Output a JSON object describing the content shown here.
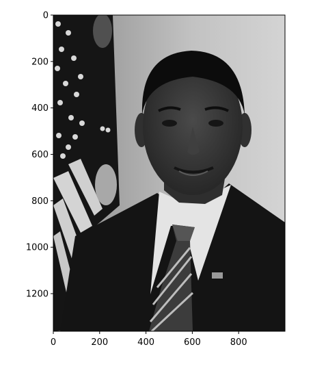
{
  "figure": {
    "xaxis": {
      "ticks": [
        0,
        200,
        400,
        600,
        800
      ],
      "range": [
        0,
        1000
      ]
    },
    "yaxis": {
      "ticks": [
        0,
        200,
        400,
        600,
        800,
        1000,
        1200
      ],
      "range": [
        1362,
        0
      ]
    }
  },
  "image": {
    "subject": "grayscale official portrait of a man in a dark suit and striped tie in front of a US flag",
    "colors": {
      "background": "#c8c8c8",
      "suit": "#121212",
      "shirt": "#e6e6e6",
      "skin": "#3a3a3a",
      "hair": "#0c0c0c",
      "flag_light": "#d8d8d8",
      "flag_dark": "#202020"
    }
  }
}
